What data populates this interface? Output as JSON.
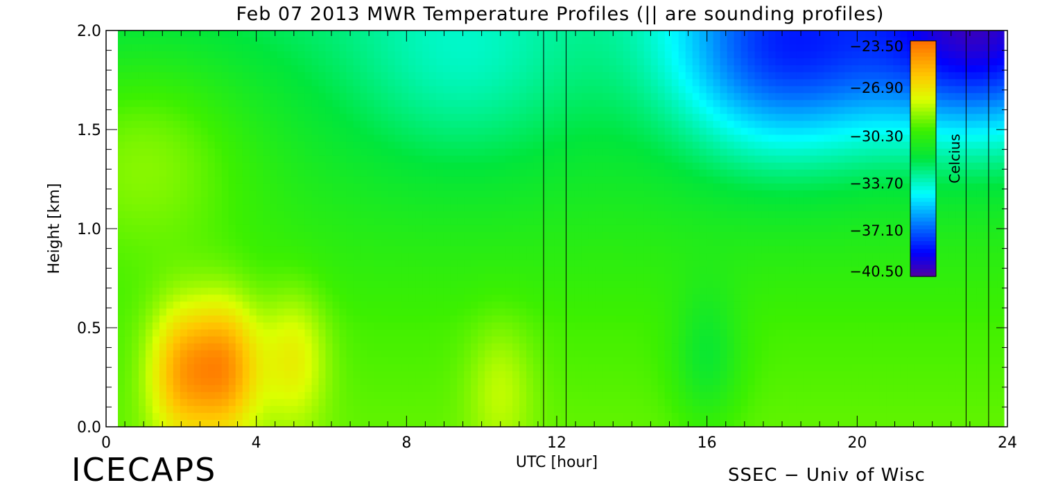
{
  "chart_data": {
    "type": "heatmap",
    "title": "Feb 07 2013 MWR Temperature Profiles (|| are sounding profiles)",
    "xlabel": "UTC [hour]",
    "ylabel": "Height [km]",
    "xlim": [
      0,
      24
    ],
    "ylim": [
      0.0,
      2.0
    ],
    "x_ticks": [
      0,
      4,
      8,
      12,
      16,
      20,
      24
    ],
    "x_tick_labels": [
      "0",
      "4",
      "8",
      "12",
      "16",
      "20",
      "24"
    ],
    "y_ticks": [
      0.0,
      0.5,
      1.0,
      1.5,
      2.0
    ],
    "y_tick_labels": [
      "0.0",
      "0.5",
      "1.0",
      "1.5",
      "2.0"
    ],
    "colorbar": {
      "label": "Celcius",
      "tick_values": [
        -23.5,
        -26.9,
        -30.3,
        -33.7,
        -37.1,
        -40.5
      ],
      "tick_labels": [
        "−23.50",
        "−26.90",
        "−30.30",
        "−33.70",
        "−37.10",
        "−40.50"
      ],
      "range": [
        -42.0,
        -22.0
      ],
      "placement": "top-right"
    },
    "sounding_times_hour": [
      11.65,
      12.25,
      22.9,
      23.5
    ],
    "grid": false,
    "temperature_field": {
      "units": "Celcius",
      "background": [
        {
          "height_km": 0.0,
          "temp": -29.0
        },
        {
          "height_km": 0.5,
          "temp": -29.5
        },
        {
          "height_km": 1.0,
          "temp": -30.5
        },
        {
          "height_km": 1.5,
          "temp": -31.5
        },
        {
          "height_km": 2.0,
          "temp": -32.5
        }
      ],
      "features": [
        {
          "hour": 2.0,
          "height_km": 0.28,
          "temp": -24.5
        },
        {
          "hour": 3.2,
          "height_km": 0.3,
          "temp": -23.8
        },
        {
          "hour": 5.0,
          "height_km": 0.35,
          "temp": -26.5
        },
        {
          "hour": 1.0,
          "height_km": 1.4,
          "temp": -28.5
        },
        {
          "hour": 9.5,
          "height_km": 1.8,
          "temp": -34.0
        },
        {
          "hour": 18.0,
          "height_km": 1.9,
          "temp": -39.0
        },
        {
          "hour": 23.3,
          "height_km": 2.0,
          "temp": -41.0
        },
        {
          "hour": 16.0,
          "height_km": 0.35,
          "temp": -31.5
        },
        {
          "hour": 10.5,
          "height_km": 0.2,
          "temp": -27.5
        }
      ]
    }
  },
  "footer": {
    "left_label": "ICECAPS",
    "right_label": "SSEC − Univ of Wisc"
  }
}
